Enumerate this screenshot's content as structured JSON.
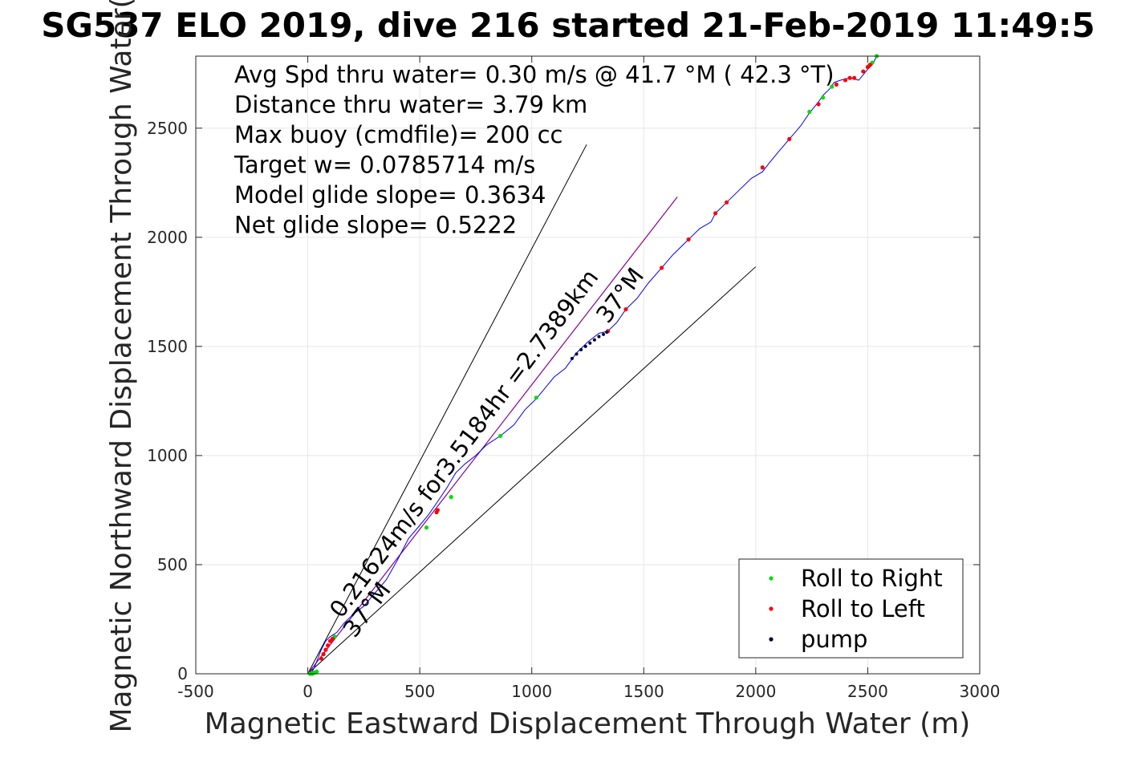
{
  "title": "SG537 ELO 2019, dive 216 started 21-Feb-2019 11:49:5",
  "colors": {
    "track": "#0000ff",
    "roll_right": "#00dd00",
    "roll_left": "#ff0000",
    "pump": "#000033",
    "glide_line": "#8b008b",
    "reference": "#000000",
    "grid": "#e6e6e6"
  },
  "chart_data": {
    "type": "scatter",
    "xlabel": "Magnetic Eastward Displacement Through Water (m)",
    "ylabel": "Magnetic Northward Displacement Through Water(",
    "xlim": [
      -500,
      3000
    ],
    "ylim": [
      0,
      2830
    ],
    "xticks": [
      -500,
      0,
      500,
      1000,
      1500,
      2000,
      2500,
      3000
    ],
    "yticks": [
      0,
      500,
      1000,
      1500,
      2000,
      2500
    ],
    "grid": true,
    "annotations": [
      "Avg Spd thru water=  0.30 m/s @  41.7 °M ( 42.3 °T)",
      "Distance thru water=  3.79 km",
      "Max buoy (cmdfile)= 200 cc",
      "Target w= 0.0785714 m/s",
      "Model glide slope= 0.3634",
      "Net glide slope= 0.5222"
    ],
    "line_labels": [
      {
        "text": "0.21624m/s for3.5184hr =2.7389km",
        "x": 150,
        "y": 250,
        "angle_deg": 53
      },
      {
        "text": "37°M",
        "x": 210,
        "y": 160,
        "angle_deg": 53
      },
      {
        "text": "37°M",
        "x": 1340,
        "y": 1600,
        "angle_deg": 53
      }
    ],
    "reference_lines": [
      {
        "x": [
          0,
          1245
        ],
        "y": [
          0,
          2425
        ]
      },
      {
        "x": [
          0,
          2000
        ],
        "y": [
          0,
          1865
        ]
      }
    ],
    "glide_line": {
      "x": [
        0,
        1650
      ],
      "y": [
        0,
        2185
      ]
    },
    "track": {
      "x": [
        0,
        20,
        30,
        45,
        60,
        80,
        100,
        130,
        160,
        200,
        250,
        300,
        350,
        400,
        450,
        500,
        540,
        580,
        620,
        660,
        700,
        750,
        800,
        860,
        920,
        970,
        1020,
        1060,
        1100,
        1150,
        1200,
        1250,
        1300,
        1340,
        1380,
        1420,
        1470,
        1520,
        1580,
        1630,
        1680,
        1710,
        1750,
        1800,
        1820,
        1870,
        1920,
        1980,
        2030,
        2060,
        2100,
        2150,
        2200,
        2240,
        2280,
        2300,
        2330,
        2350,
        2380,
        2420,
        2460,
        2500,
        2520,
        2540
      ],
      "y": [
        0,
        10,
        30,
        70,
        110,
        150,
        170,
        190,
        230,
        270,
        310,
        370,
        430,
        520,
        620,
        680,
        730,
        790,
        850,
        920,
        960,
        1000,
        1050,
        1090,
        1140,
        1210,
        1260,
        1310,
        1360,
        1400,
        1470,
        1520,
        1560,
        1570,
        1610,
        1670,
        1720,
        1790,
        1860,
        1920,
        1970,
        2000,
        2040,
        2070,
        2110,
        2160,
        2210,
        2270,
        2300,
        2340,
        2390,
        2450,
        2510,
        2570,
        2620,
        2650,
        2680,
        2710,
        2720,
        2730,
        2720,
        2770,
        2790,
        2830
      ]
    },
    "series": [
      {
        "name": "Roll to Right",
        "x": [
          10,
          20,
          30,
          40,
          120,
          530,
          640,
          860,
          1020,
          2240,
          2300,
          2340,
          2520,
          2540
        ],
        "y": [
          0,
          0,
          5,
          10,
          170,
          670,
          810,
          1090,
          1265,
          2575,
          2640,
          2690,
          2800,
          2830
        ]
      },
      {
        "name": "Roll to Left",
        "x": [
          60,
          70,
          80,
          90,
          100,
          110,
          575,
          580,
          1340,
          1420,
          1580,
          1700,
          1820,
          1870,
          2030,
          2150,
          2280,
          2360,
          2400,
          2420,
          2440,
          2480,
          2500,
          2510
        ],
        "y": [
          70,
          90,
          110,
          130,
          150,
          160,
          740,
          750,
          1570,
          1670,
          1860,
          1990,
          2110,
          2160,
          2320,
          2450,
          2610,
          2700,
          2720,
          2730,
          2730,
          2760,
          2780,
          2790
        ]
      },
      {
        "name": "pump",
        "x": [
          1180,
          1200,
          1220,
          1240,
          1260,
          1280,
          1300,
          1320,
          1335
        ],
        "y": [
          1445,
          1465,
          1485,
          1500,
          1515,
          1530,
          1545,
          1555,
          1565
        ]
      }
    ],
    "legend": {
      "position": "bottom-right",
      "entries": [
        "Roll to Right",
        "Roll to Left",
        "pump"
      ]
    }
  }
}
